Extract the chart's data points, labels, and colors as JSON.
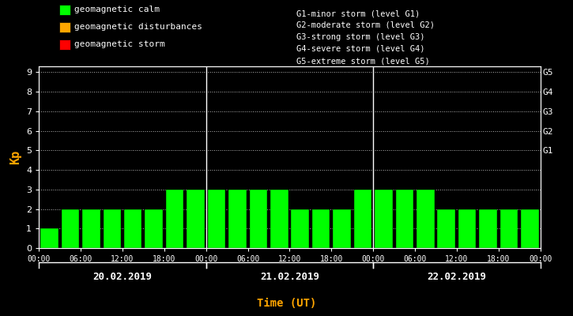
{
  "background_color": "#000000",
  "plot_bg_color": "#000000",
  "bar_color_calm": "#00ff00",
  "bar_color_disturbance": "#ffa500",
  "bar_color_storm": "#ff0000",
  "text_color": "#ffffff",
  "xlabel_color": "#ffa500",
  "ylabel_color": "#ffa500",
  "grid_color": "#ffffff",
  "separator_color": "#ffffff",
  "kp_values": [
    1,
    2,
    2,
    2,
    2,
    2,
    3,
    3,
    3,
    3,
    3,
    3,
    2,
    2,
    2,
    3,
    3,
    3,
    3,
    2,
    2,
    2,
    2,
    2
  ],
  "ylim_min": 0,
  "ylim_max": 9,
  "yticks": [
    0,
    1,
    2,
    3,
    4,
    5,
    6,
    7,
    8,
    9
  ],
  "right_labels": [
    "G1",
    "G2",
    "G3",
    "G4",
    "G5"
  ],
  "right_label_yvals": [
    5,
    6,
    7,
    8,
    9
  ],
  "days": [
    "20.02.2019",
    "21.02.2019",
    "22.02.2019"
  ],
  "xlabel": "Time (UT)",
  "ylabel": "Kp",
  "legend_items": [
    {
      "label": "geomagnetic calm",
      "color": "#00ff00"
    },
    {
      "label": "geomagnetic disturbances",
      "color": "#ffa500"
    },
    {
      "label": "geomagnetic storm",
      "color": "#ff0000"
    }
  ],
  "storm_legend_lines": [
    "G1-minor storm (level G1)",
    "G2-moderate storm (level G2)",
    "G3-strong storm (level G3)",
    "G4-severe storm (level G4)",
    "G5-extreme storm (level G5)"
  ],
  "xtick_labels": [
    "00:00",
    "06:00",
    "12:00",
    "18:00",
    "00:00",
    "06:00",
    "12:00",
    "18:00",
    "00:00",
    "06:00",
    "12:00",
    "18:00",
    "00:00"
  ],
  "n_days": 3,
  "bars_per_day": 8,
  "bar_width": 0.85
}
